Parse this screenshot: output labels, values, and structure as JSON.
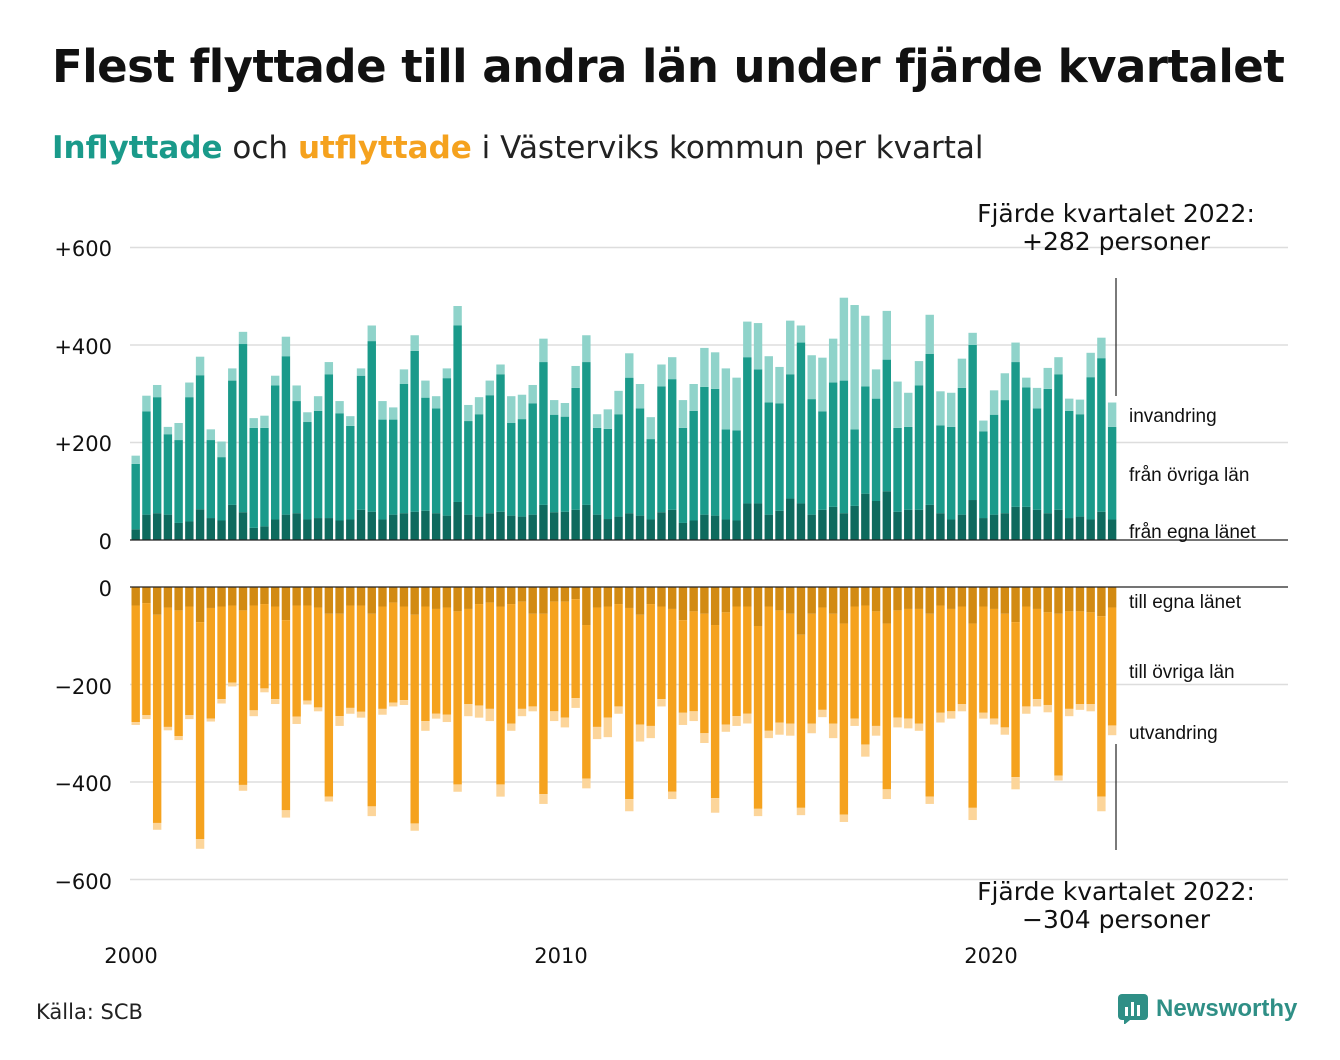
{
  "title": "Flest flyttade till andra län under fjärde kvartalet",
  "subtitle": {
    "in_word": "Inflyttade",
    "connector": "och",
    "out_word": "utflyttade",
    "rest": "i Västerviks kommun per kvartal"
  },
  "source": "Källa: SCB",
  "logo": {
    "text": "Newsworthy",
    "icon": "newsworthy-logo-icon"
  },
  "colors": {
    "in_own": "#0e6a5e",
    "in_other": "#1a9a8a",
    "in_immig": "#8fd3ca",
    "out_own": "#d28a12",
    "out_other": "#f5a21e",
    "out_emig": "#fcd59a",
    "grid": "#dddddd"
  },
  "annotations": {
    "top": {
      "line1": "Fjärde kvartalet 2022:",
      "line2": "+282 personer"
    },
    "bottom": {
      "line1": "Fjärde kvartalet 2022:",
      "line2": "−304 personer"
    }
  },
  "chart_data": {
    "type": "bar",
    "stacked": true,
    "x_tick_labels": [
      "2000",
      "2010",
      "2020"
    ],
    "y_tick_labels": [
      "+600",
      "+400",
      "+200",
      "0",
      "0",
      "−200",
      "−400",
      "−600"
    ],
    "ylim": [
      -600,
      600
    ],
    "x_range": [
      "2000 Q1",
      "2022 Q4"
    ],
    "grid": true,
    "series_labels": {
      "in_immig": "invandring",
      "in_other": "från övriga län",
      "in_own": "från egna länet",
      "out_own": "till egna länet",
      "out_other": "till övriga län",
      "out_emig": "utvandring"
    },
    "quarters": [
      {
        "q": "2000 Q1",
        "in_own": 22,
        "in_other": 134,
        "in_immig": 17,
        "out_own": 38,
        "out_other": 239,
        "out_emig": 6
      },
      {
        "q": "2000 Q2",
        "in_own": 52,
        "in_other": 212,
        "in_immig": 32,
        "out_own": 33,
        "out_other": 230,
        "out_emig": 8
      },
      {
        "q": "2000 Q3",
        "in_own": 55,
        "in_other": 238,
        "in_immig": 25,
        "out_own": 57,
        "out_other": 427,
        "out_emig": 14
      },
      {
        "q": "2000 Q4",
        "in_own": 52,
        "in_other": 165,
        "in_immig": 15,
        "out_own": 42,
        "out_other": 245,
        "out_emig": 7
      },
      {
        "q": "2001 Q1",
        "in_own": 35,
        "in_other": 170,
        "in_immig": 35,
        "out_own": 48,
        "out_other": 258,
        "out_emig": 8
      },
      {
        "q": "2001 Q2",
        "in_own": 38,
        "in_other": 255,
        "in_immig": 30,
        "out_own": 40,
        "out_other": 223,
        "out_emig": 8
      },
      {
        "q": "2001 Q3",
        "in_own": 63,
        "in_other": 275,
        "in_immig": 38,
        "out_own": 72,
        "out_other": 445,
        "out_emig": 20
      },
      {
        "q": "2001 Q4",
        "in_own": 45,
        "in_other": 160,
        "in_immig": 22,
        "out_own": 43,
        "out_other": 227,
        "out_emig": 6
      },
      {
        "q": "2002 Q1",
        "in_own": 40,
        "in_other": 130,
        "in_immig": 32,
        "out_own": 40,
        "out_other": 190,
        "out_emig": 9
      },
      {
        "q": "2002 Q2",
        "in_own": 72,
        "in_other": 255,
        "in_immig": 25,
        "out_own": 38,
        "out_other": 158,
        "out_emig": 8
      },
      {
        "q": "2002 Q3",
        "in_own": 57,
        "in_other": 345,
        "in_immig": 25,
        "out_own": 48,
        "out_other": 358,
        "out_emig": 12
      },
      {
        "q": "2002 Q4",
        "in_own": 25,
        "in_other": 205,
        "in_immig": 20,
        "out_own": 38,
        "out_other": 215,
        "out_emig": 12
      },
      {
        "q": "2003 Q1",
        "in_own": 28,
        "in_other": 202,
        "in_immig": 25,
        "out_own": 35,
        "out_other": 173,
        "out_emig": 8
      },
      {
        "q": "2003 Q2",
        "in_own": 42,
        "in_other": 275,
        "in_immig": 20,
        "out_own": 40,
        "out_other": 190,
        "out_emig": 10
      },
      {
        "q": "2003 Q3",
        "in_own": 52,
        "in_other": 325,
        "in_immig": 40,
        "out_own": 68,
        "out_other": 390,
        "out_emig": 15
      },
      {
        "q": "2003 Q4",
        "in_own": 55,
        "in_other": 230,
        "in_immig": 32,
        "out_own": 38,
        "out_other": 228,
        "out_emig": 15
      },
      {
        "q": "2004 Q1",
        "in_own": 42,
        "in_other": 200,
        "in_immig": 20,
        "out_own": 38,
        "out_other": 195,
        "out_emig": 8
      },
      {
        "q": "2004 Q2",
        "in_own": 45,
        "in_other": 220,
        "in_immig": 30,
        "out_own": 42,
        "out_other": 205,
        "out_emig": 8
      },
      {
        "q": "2004 Q3",
        "in_own": 45,
        "in_other": 295,
        "in_immig": 25,
        "out_own": 55,
        "out_other": 375,
        "out_emig": 10
      },
      {
        "q": "2004 Q4",
        "in_own": 40,
        "in_other": 220,
        "in_immig": 25,
        "out_own": 55,
        "out_other": 210,
        "out_emig": 20
      },
      {
        "q": "2005 Q1",
        "in_own": 42,
        "in_other": 192,
        "in_immig": 20,
        "out_own": 38,
        "out_other": 210,
        "out_emig": 12
      },
      {
        "q": "2005 Q2",
        "in_own": 62,
        "in_other": 275,
        "in_immig": 15,
        "out_own": 38,
        "out_other": 218,
        "out_emig": 12
      },
      {
        "q": "2005 Q3",
        "in_own": 58,
        "in_other": 350,
        "in_immig": 32,
        "out_own": 55,
        "out_other": 395,
        "out_emig": 20
      },
      {
        "q": "2005 Q4",
        "in_own": 42,
        "in_other": 205,
        "in_immig": 38,
        "out_own": 40,
        "out_other": 210,
        "out_emig": 12
      },
      {
        "q": "2006 Q1",
        "in_own": 52,
        "in_other": 195,
        "in_immig": 25,
        "out_own": 32,
        "out_other": 205,
        "out_emig": 8
      },
      {
        "q": "2006 Q2",
        "in_own": 55,
        "in_other": 265,
        "in_immig": 30,
        "out_own": 40,
        "out_other": 192,
        "out_emig": 10
      },
      {
        "q": "2006 Q3",
        "in_own": 58,
        "in_other": 330,
        "in_immig": 32,
        "out_own": 57,
        "out_other": 428,
        "out_emig": 15
      },
      {
        "q": "2006 Q4",
        "in_own": 60,
        "in_other": 232,
        "in_immig": 35,
        "out_own": 40,
        "out_other": 235,
        "out_emig": 20
      },
      {
        "q": "2007 Q1",
        "in_own": 55,
        "in_other": 215,
        "in_immig": 25,
        "out_own": 45,
        "out_other": 215,
        "out_emig": 10
      },
      {
        "q": "2007 Q2",
        "in_own": 50,
        "in_other": 282,
        "in_immig": 20,
        "out_own": 42,
        "out_other": 220,
        "out_emig": 15
      },
      {
        "q": "2007 Q3",
        "in_own": 78,
        "in_other": 362,
        "in_immig": 40,
        "out_own": 50,
        "out_other": 355,
        "out_emig": 15
      },
      {
        "q": "2007 Q4",
        "in_own": 52,
        "in_other": 192,
        "in_immig": 33,
        "out_own": 45,
        "out_other": 195,
        "out_emig": 25
      },
      {
        "q": "2008 Q1",
        "in_own": 48,
        "in_other": 210,
        "in_immig": 35,
        "out_own": 35,
        "out_other": 208,
        "out_emig": 25
      },
      {
        "q": "2008 Q2",
        "in_own": 55,
        "in_other": 242,
        "in_immig": 30,
        "out_own": 32,
        "out_other": 218,
        "out_emig": 25
      },
      {
        "q": "2008 Q3",
        "in_own": 58,
        "in_other": 282,
        "in_immig": 20,
        "out_own": 40,
        "out_other": 365,
        "out_emig": 25
      },
      {
        "q": "2008 Q4",
        "in_own": 50,
        "in_other": 190,
        "in_immig": 55,
        "out_own": 35,
        "out_other": 245,
        "out_emig": 15
      },
      {
        "q": "2009 Q1",
        "in_own": 48,
        "in_other": 200,
        "in_immig": 50,
        "out_own": 30,
        "out_other": 220,
        "out_emig": 15
      },
      {
        "q": "2009 Q2",
        "in_own": 52,
        "in_other": 228,
        "in_immig": 38,
        "out_own": 55,
        "out_other": 190,
        "out_emig": 10
      },
      {
        "q": "2009 Q3",
        "in_own": 72,
        "in_other": 293,
        "in_immig": 48,
        "out_own": 55,
        "out_other": 370,
        "out_emig": 20
      },
      {
        "q": "2009 Q4",
        "in_own": 57,
        "in_other": 200,
        "in_immig": 30,
        "out_own": 30,
        "out_other": 225,
        "out_emig": 20
      },
      {
        "q": "2010 Q1",
        "in_own": 58,
        "in_other": 195,
        "in_immig": 28,
        "out_own": 30,
        "out_other": 238,
        "out_emig": 20
      },
      {
        "q": "2010 Q2",
        "in_own": 62,
        "in_other": 250,
        "in_immig": 45,
        "out_own": 25,
        "out_other": 203,
        "out_emig": 20
      },
      {
        "q": "2010 Q3",
        "in_own": 72,
        "in_other": 293,
        "in_immig": 55,
        "out_own": 78,
        "out_other": 315,
        "out_emig": 20
      },
      {
        "q": "2010 Q4",
        "in_own": 52,
        "in_other": 178,
        "in_immig": 28,
        "out_own": 42,
        "out_other": 245,
        "out_emig": 25
      },
      {
        "q": "2011 Q1",
        "in_own": 43,
        "in_other": 185,
        "in_immig": 40,
        "out_own": 40,
        "out_other": 228,
        "out_emig": 40
      },
      {
        "q": "2011 Q2",
        "in_own": 48,
        "in_other": 210,
        "in_immig": 48,
        "out_own": 35,
        "out_other": 210,
        "out_emig": 15
      },
      {
        "q": "2011 Q3",
        "in_own": 55,
        "in_other": 278,
        "in_immig": 50,
        "out_own": 43,
        "out_other": 392,
        "out_emig": 25
      },
      {
        "q": "2011 Q4",
        "in_own": 50,
        "in_other": 220,
        "in_immig": 50,
        "out_own": 57,
        "out_other": 225,
        "out_emig": 35
      },
      {
        "q": "2012 Q1",
        "in_own": 42,
        "in_other": 165,
        "in_immig": 45,
        "out_own": 35,
        "out_other": 250,
        "out_emig": 25
      },
      {
        "q": "2012 Q2",
        "in_own": 57,
        "in_other": 258,
        "in_immig": 45,
        "out_own": 40,
        "out_other": 190,
        "out_emig": 15
      },
      {
        "q": "2012 Q3",
        "in_own": 62,
        "in_other": 268,
        "in_immig": 45,
        "out_own": 45,
        "out_other": 375,
        "out_emig": 15
      },
      {
        "q": "2012 Q4",
        "in_own": 35,
        "in_other": 195,
        "in_immig": 57,
        "out_own": 68,
        "out_other": 190,
        "out_emig": 25
      },
      {
        "q": "2013 Q1",
        "in_own": 40,
        "in_other": 225,
        "in_immig": 55,
        "out_own": 50,
        "out_other": 205,
        "out_emig": 20
      },
      {
        "q": "2013 Q2",
        "in_own": 52,
        "in_other": 262,
        "in_immig": 80,
        "out_own": 55,
        "out_other": 245,
        "out_emig": 20
      },
      {
        "q": "2013 Q3",
        "in_own": 50,
        "in_other": 260,
        "in_immig": 75,
        "out_own": 78,
        "out_other": 355,
        "out_emig": 30
      },
      {
        "q": "2013 Q4",
        "in_own": 42,
        "in_other": 185,
        "in_immig": 125,
        "out_own": 52,
        "out_other": 230,
        "out_emig": 15
      },
      {
        "q": "2014 Q1",
        "in_own": 40,
        "in_other": 185,
        "in_immig": 108,
        "out_own": 40,
        "out_other": 225,
        "out_emig": 20
      },
      {
        "q": "2014 Q2",
        "in_own": 75,
        "in_other": 300,
        "in_immig": 73,
        "out_own": 40,
        "out_other": 220,
        "out_emig": 20
      },
      {
        "q": "2014 Q3",
        "in_own": 75,
        "in_other": 275,
        "in_immig": 95,
        "out_own": 80,
        "out_other": 375,
        "out_emig": 15
      },
      {
        "q": "2014 Q4",
        "in_own": 52,
        "in_other": 230,
        "in_immig": 95,
        "out_own": 40,
        "out_other": 255,
        "out_emig": 15
      },
      {
        "q": "2015 Q1",
        "in_own": 60,
        "in_other": 220,
        "in_immig": 75,
        "out_own": 48,
        "out_other": 230,
        "out_emig": 25
      },
      {
        "q": "2015 Q2",
        "in_own": 85,
        "in_other": 255,
        "in_immig": 110,
        "out_own": 55,
        "out_other": 225,
        "out_emig": 25
      },
      {
        "q": "2015 Q3",
        "in_own": 75,
        "in_other": 330,
        "in_immig": 35,
        "out_own": 98,
        "out_other": 355,
        "out_emig": 15
      },
      {
        "q": "2015 Q4",
        "in_own": 52,
        "in_other": 237,
        "in_immig": 90,
        "out_own": 55,
        "out_other": 225,
        "out_emig": 20
      },
      {
        "q": "2016 Q1",
        "in_own": 62,
        "in_other": 202,
        "in_immig": 110,
        "out_own": 42,
        "out_other": 210,
        "out_emig": 15
      },
      {
        "q": "2016 Q2",
        "in_own": 68,
        "in_other": 255,
        "in_immig": 90,
        "out_own": 55,
        "out_other": 225,
        "out_emig": 30
      },
      {
        "q": "2016 Q3",
        "in_own": 55,
        "in_other": 272,
        "in_immig": 170,
        "out_own": 75,
        "out_other": 392,
        "out_emig": 15
      },
      {
        "q": "2016 Q4",
        "in_own": 70,
        "in_other": 157,
        "in_immig": 255,
        "out_own": 40,
        "out_other": 230,
        "out_emig": 15
      },
      {
        "q": "2017 Q1",
        "in_own": 95,
        "in_other": 220,
        "in_immig": 145,
        "out_own": 38,
        "out_other": 285,
        "out_emig": 25
      },
      {
        "q": "2017 Q2",
        "in_own": 80,
        "in_other": 210,
        "in_immig": 60,
        "out_own": 50,
        "out_other": 235,
        "out_emig": 20
      },
      {
        "q": "2017 Q3",
        "in_own": 100,
        "in_other": 270,
        "in_immig": 100,
        "out_own": 75,
        "out_other": 340,
        "out_emig": 20
      },
      {
        "q": "2017 Q4",
        "in_own": 58,
        "in_other": 172,
        "in_immig": 95,
        "out_own": 48,
        "out_other": 220,
        "out_emig": 20
      },
      {
        "q": "2018 Q1",
        "in_own": 62,
        "in_other": 170,
        "in_immig": 70,
        "out_own": 45,
        "out_other": 225,
        "out_emig": 20
      },
      {
        "q": "2018 Q2",
        "in_own": 62,
        "in_other": 255,
        "in_immig": 50,
        "out_own": 45,
        "out_other": 235,
        "out_emig": 15
      },
      {
        "q": "2018 Q3",
        "in_own": 72,
        "in_other": 310,
        "in_immig": 80,
        "out_own": 55,
        "out_other": 375,
        "out_emig": 15
      },
      {
        "q": "2018 Q4",
        "in_own": 55,
        "in_other": 180,
        "in_immig": 70,
        "out_own": 38,
        "out_other": 220,
        "out_emig": 20
      },
      {
        "q": "2019 Q1",
        "in_own": 42,
        "in_other": 190,
        "in_immig": 70,
        "out_own": 45,
        "out_other": 210,
        "out_emig": 15
      },
      {
        "q": "2019 Q2",
        "in_own": 52,
        "in_other": 260,
        "in_immig": 60,
        "out_own": 40,
        "out_other": 200,
        "out_emig": 15
      },
      {
        "q": "2019 Q3",
        "in_own": 82,
        "in_other": 318,
        "in_immig": 25,
        "out_own": 75,
        "out_other": 378,
        "out_emig": 25
      },
      {
        "q": "2019 Q4",
        "in_own": 45,
        "in_other": 178,
        "in_immig": 22,
        "out_own": 40,
        "out_other": 218,
        "out_emig": 12
      },
      {
        "q": "2020 Q1",
        "in_own": 52,
        "in_other": 205,
        "in_immig": 50,
        "out_own": 45,
        "out_other": 225,
        "out_emig": 12
      },
      {
        "q": "2020 Q2",
        "in_own": 55,
        "in_other": 232,
        "in_immig": 55,
        "out_own": 55,
        "out_other": 233,
        "out_emig": 15
      },
      {
        "q": "2020 Q3",
        "in_own": 68,
        "in_other": 297,
        "in_immig": 40,
        "out_own": 72,
        "out_other": 318,
        "out_emig": 25
      },
      {
        "q": "2020 Q4",
        "in_own": 68,
        "in_other": 245,
        "in_immig": 20,
        "out_own": 40,
        "out_other": 205,
        "out_emig": 15
      },
      {
        "q": "2021 Q1",
        "in_own": 62,
        "in_other": 208,
        "in_immig": 42,
        "out_own": 45,
        "out_other": 185,
        "out_emig": 15
      },
      {
        "q": "2021 Q2",
        "in_own": 55,
        "in_other": 255,
        "in_immig": 43,
        "out_own": 52,
        "out_other": 190,
        "out_emig": 15
      },
      {
        "q": "2021 Q3",
        "in_own": 62,
        "in_other": 278,
        "in_immig": 35,
        "out_own": 55,
        "out_other": 332,
        "out_emig": 10
      },
      {
        "q": "2021 Q4",
        "in_own": 45,
        "in_other": 220,
        "in_immig": 25,
        "out_own": 50,
        "out_other": 200,
        "out_emig": 15
      },
      {
        "q": "2022 Q1",
        "in_own": 48,
        "in_other": 210,
        "in_immig": 30,
        "out_own": 50,
        "out_other": 190,
        "out_emig": 12
      },
      {
        "q": "2022 Q2",
        "in_own": 42,
        "in_other": 292,
        "in_immig": 50,
        "out_own": 52,
        "out_other": 188,
        "out_emig": 15
      },
      {
        "q": "2022 Q3",
        "in_own": 58,
        "in_other": 315,
        "in_immig": 42,
        "out_own": 60,
        "out_other": 370,
        "out_emig": 30
      },
      {
        "q": "2022 Q4",
        "in_own": 42,
        "in_other": 190,
        "in_immig": 50,
        "out_own": 42,
        "out_other": 242,
        "out_emig": 20
      }
    ]
  }
}
